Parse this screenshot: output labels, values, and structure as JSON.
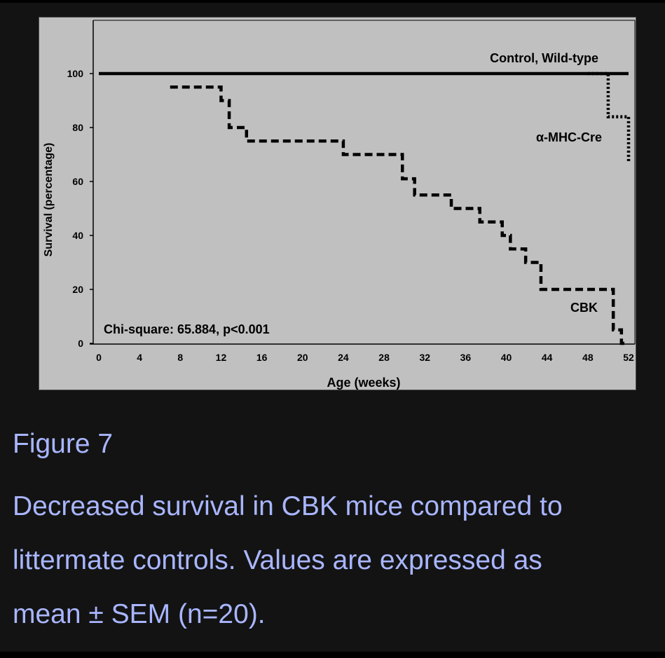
{
  "caption": {
    "figure_label": "Figure 7",
    "lines": [
      "Decreased survival in CBK mice compared to",
      "littermate controls. Values are expressed as",
      "mean ± SEM (n=20)."
    ]
  },
  "colors": {
    "page_background": "#131313",
    "plot_background": "#c0c0c0",
    "caption_text": "#a9b6ff",
    "series_ink": "#000000"
  },
  "chart_data": {
    "type": "line",
    "subtype": "kaplan-meier step survival curves",
    "title": "",
    "xlabel": "Age (weeks)",
    "ylabel": "Survival (percentage)",
    "xlim": [
      0,
      52
    ],
    "ylim": [
      0,
      100
    ],
    "x_ticks": [
      0,
      4,
      8,
      12,
      16,
      20,
      24,
      28,
      32,
      36,
      40,
      44,
      48,
      52
    ],
    "y_ticks": [
      0,
      20,
      40,
      60,
      80,
      100
    ],
    "grid": false,
    "annotation": "Chi-square: 65.884, p<0.001",
    "series": [
      {
        "name": "Control, Wild-type",
        "line_style": "solid",
        "x": [
          0,
          52
        ],
        "y": [
          100,
          100
        ]
      },
      {
        "name": "α-MHC-Cre",
        "line_style": "dotted",
        "x": [
          48,
          50,
          52
        ],
        "y": [
          100,
          84,
          67
        ]
      },
      {
        "name": "CBK",
        "line_style": "dashed",
        "x": [
          7,
          12,
          12.8,
          14.5,
          24,
          29.8,
          31,
          34.6,
          37.4,
          39.6,
          40.4,
          41.9,
          43.4,
          50.5,
          51.3,
          52
        ],
        "y": [
          95,
          90,
          80,
          75,
          70,
          61,
          55,
          50,
          45,
          40,
          35,
          30,
          20,
          5,
          0,
          0
        ]
      }
    ]
  }
}
